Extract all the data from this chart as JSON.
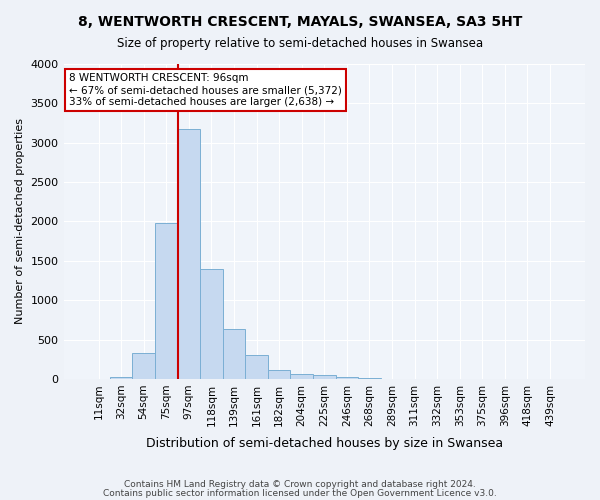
{
  "title": "8, WENTWORTH CRESCENT, MAYALS, SWANSEA, SA3 5HT",
  "subtitle": "Size of property relative to semi-detached houses in Swansea",
  "xlabel": "Distribution of semi-detached houses by size in Swansea",
  "ylabel": "Number of semi-detached properties",
  "footnote1": "Contains HM Land Registry data © Crown copyright and database right 2024.",
  "footnote2": "Contains public sector information licensed under the Open Government Licence v3.0.",
  "annotation_title": "8 WENTWORTH CRESCENT: 96sqm",
  "annotation_line1": "← 67% of semi-detached houses are smaller (5,372)",
  "annotation_line2": "33% of semi-detached houses are larger (2,638) →",
  "bin_labels": [
    "11sqm",
    "32sqm",
    "54sqm",
    "75sqm",
    "97sqm",
    "118sqm",
    "139sqm",
    "161sqm",
    "182sqm",
    "204sqm",
    "225sqm",
    "246sqm",
    "268sqm",
    "289sqm",
    "311sqm",
    "332sqm",
    "353sqm",
    "375sqm",
    "396sqm",
    "418sqm",
    "439sqm"
  ],
  "bar_heights": [
    5,
    30,
    330,
    1980,
    3170,
    1390,
    630,
    300,
    110,
    65,
    50,
    30,
    10,
    5,
    3,
    2,
    2,
    1,
    1,
    1,
    1
  ],
  "bar_color": "#c6d9f0",
  "bar_edgecolor": "#7bafd4",
  "vline_color": "#cc0000",
  "vline_x_index": 4,
  "annotation_box_color": "#cc0000",
  "background_color": "#eef2f8",
  "plot_bg_color": "#f0f4fa",
  "ylim": [
    0,
    4000
  ],
  "yticks": [
    0,
    500,
    1000,
    1500,
    2000,
    2500,
    3000,
    3500,
    4000
  ]
}
